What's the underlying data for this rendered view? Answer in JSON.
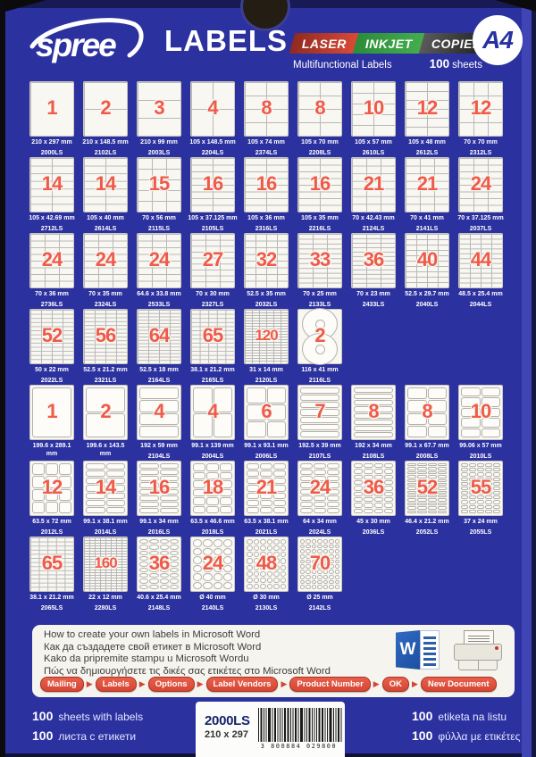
{
  "header": {
    "brand": "spree",
    "title": "LABELS",
    "badges": [
      {
        "label": "LASER",
        "color": "#d94a38"
      },
      {
        "label": "INKJET",
        "color": "#45ad4e"
      },
      {
        "label": "COPIER",
        "color": "#2b2b2b"
      }
    ],
    "a4": "A4",
    "subtitle": "Multifunctional Labels",
    "sheets": {
      "bold": "100",
      "word": "sheets"
    }
  },
  "grid": {
    "rows": [
      {
        "items": [
          {
            "n": "1",
            "size": "210 x 297 mm",
            "code": "2000LS",
            "p": "grid",
            "c": 1,
            "r": 1
          },
          {
            "n": "2",
            "size": "210 x 148.5 mm",
            "code": "2102LS",
            "p": "grid",
            "c": 1,
            "r": 2
          },
          {
            "n": "3",
            "size": "210 x 99 mm",
            "code": "2003LS",
            "p": "grid",
            "c": 1,
            "r": 3
          },
          {
            "n": "4",
            "size": "105 x 148.5 mm",
            "code": "2204LS",
            "p": "grid",
            "c": 2,
            "r": 2
          },
          {
            "n": "8",
            "size": "105 x 74 mm",
            "code": "2374LS",
            "p": "grid",
            "c": 2,
            "r": 4
          },
          {
            "n": "8",
            "size": "105 x 70 mm",
            "code": "2208LS",
            "p": "grid",
            "c": 2,
            "r": 4
          },
          {
            "n": "10",
            "size": "105 x 57 mm",
            "code": "2610LS",
            "p": "grid",
            "c": 2,
            "r": 5
          },
          {
            "n": "12",
            "size": "105 x 48 mm",
            "code": "2612LS",
            "p": "grid",
            "c": 2,
            "r": 6
          },
          {
            "n": "12",
            "size": "70 x 70 mm",
            "code": "2312LS",
            "p": "grid",
            "c": 3,
            "r": 4
          }
        ]
      },
      {
        "items": [
          {
            "n": "14",
            "size": "105 x 42.69 mm",
            "code": "2712LS",
            "p": "grid",
            "c": 2,
            "r": 7
          },
          {
            "n": "14",
            "size": "105 x 40 mm",
            "code": "2614LS",
            "p": "grid",
            "c": 2,
            "r": 7
          },
          {
            "n": "15",
            "size": "70 x 56 mm",
            "code": "2115LS",
            "p": "grid",
            "c": 3,
            "r": 5
          },
          {
            "n": "16",
            "size": "105 x 37.125 mm",
            "code": "2105LS",
            "p": "grid",
            "c": 2,
            "r": 8
          },
          {
            "n": "16",
            "size": "105 x 36 mm",
            "code": "2316LS",
            "p": "grid",
            "c": 2,
            "r": 8
          },
          {
            "n": "16",
            "size": "105 x 35 mm",
            "code": "2216LS",
            "p": "grid",
            "c": 2,
            "r": 8
          },
          {
            "n": "21",
            "size": "70 x 42.43 mm",
            "code": "2124LS",
            "p": "grid",
            "c": 3,
            "r": 7
          },
          {
            "n": "21",
            "size": "70 x 41 mm",
            "code": "2141LS",
            "p": "grid",
            "c": 3,
            "r": 7
          },
          {
            "n": "24",
            "size": "70 x 37.125 mm",
            "code": "2037LS",
            "p": "grid",
            "c": 3,
            "r": 8
          }
        ]
      },
      {
        "items": [
          {
            "n": "24",
            "size": "70 x 36 mm",
            "code": "2736LS",
            "p": "grid",
            "c": 3,
            "r": 8
          },
          {
            "n": "24",
            "size": "70 x 35 mm",
            "code": "2324LS",
            "p": "grid",
            "c": 3,
            "r": 8
          },
          {
            "n": "24",
            "size": "64.6 x 33.8 mm",
            "code": "2533LS",
            "p": "grid",
            "c": 3,
            "r": 8
          },
          {
            "n": "27",
            "size": "70 x 30 mm",
            "code": "2327LS",
            "p": "grid",
            "c": 3,
            "r": 9
          },
          {
            "n": "32",
            "size": "52.5 x 35 mm",
            "code": "2032LS",
            "p": "grid",
            "c": 4,
            "r": 8
          },
          {
            "n": "33",
            "size": "70 x 25 mm",
            "code": "2133LS",
            "p": "grid",
            "c": 3,
            "r": 11
          },
          {
            "n": "36",
            "size": "70 x 23 mm",
            "code": "2433LS",
            "p": "grid",
            "c": 3,
            "r": 12
          },
          {
            "n": "40",
            "size": "52.5 x 29.7 mm",
            "code": "2040LS",
            "p": "grid",
            "c": 4,
            "r": 10
          },
          {
            "n": "44",
            "size": "48.5 x 25.4 mm",
            "code": "2044LS",
            "p": "grid",
            "c": 4,
            "r": 11
          }
        ]
      },
      {
        "items": [
          {
            "n": "52",
            "size": "50 x 22 mm",
            "code": "2022LS",
            "p": "grid",
            "c": 4,
            "r": 13
          },
          {
            "n": "56",
            "size": "52.5 x 21.2 mm",
            "code": "2321LS",
            "p": "grid",
            "c": 4,
            "r": 14
          },
          {
            "n": "64",
            "size": "52.5 x 18 mm",
            "code": "2164LS",
            "p": "grid",
            "c": 4,
            "r": 16
          },
          {
            "n": "65",
            "size": "38.1 x 21.2 mm",
            "code": "2165LS",
            "p": "grid",
            "c": 5,
            "r": 13
          },
          {
            "n": "120",
            "size": "31 x 14 mm",
            "code": "2120LS",
            "p": "grid",
            "c": 6,
            "r": 20
          },
          {
            "n": "2",
            "size": "116 x 41 mm",
            "code": "2116LS",
            "p": "cd",
            "c": 1,
            "r": 2
          }
        ]
      },
      {
        "items": [
          {
            "n": "1",
            "size": "199.6 x 289.1 mm",
            "code": "2001LS",
            "p": "rounded",
            "c": 1,
            "r": 1
          },
          {
            "n": "2",
            "size": "199.6 x 143.5 mm",
            "code": "2002LS",
            "p": "rounded",
            "c": 1,
            "r": 2
          },
          {
            "n": "4",
            "size": "192 x 59 mm",
            "code": "2104LS",
            "p": "rounded",
            "c": 1,
            "r": 4
          },
          {
            "n": "4",
            "size": "99.1 x 139 mm",
            "code": "2004LS",
            "p": "rounded",
            "c": 2,
            "r": 2
          },
          {
            "n": "6",
            "size": "99.1 x 93.1 mm",
            "code": "2006LS",
            "p": "rounded",
            "c": 2,
            "r": 3
          },
          {
            "n": "7",
            "size": "192.5 x 39 mm",
            "code": "2107LS",
            "p": "rounded",
            "c": 1,
            "r": 7
          },
          {
            "n": "8",
            "size": "192 x 34 mm",
            "code": "2108LS",
            "p": "rounded",
            "c": 1,
            "r": 8
          },
          {
            "n": "8",
            "size": "99.1 x 67.7 mm",
            "code": "2008LS",
            "p": "rounded",
            "c": 2,
            "r": 4
          },
          {
            "n": "10",
            "size": "99.06 x 57 mm",
            "code": "2010LS",
            "p": "rounded",
            "c": 2,
            "r": 5
          }
        ]
      },
      {
        "items": [
          {
            "n": "12",
            "size": "63.5 x 72 mm",
            "code": "2012LS",
            "p": "rounded",
            "c": 3,
            "r": 4
          },
          {
            "n": "14",
            "size": "99.1 x 38.1 mm",
            "code": "2014LS",
            "p": "rounded",
            "c": 2,
            "r": 7
          },
          {
            "n": "16",
            "size": "99.1 x 34 mm",
            "code": "2016LS",
            "p": "rounded",
            "c": 2,
            "r": 8
          },
          {
            "n": "18",
            "size": "63.5 x 46.6 mm",
            "code": "2018LS",
            "p": "rounded",
            "c": 3,
            "r": 6
          },
          {
            "n": "21",
            "size": "63.5 x 38.1 mm",
            "code": "2021LS",
            "p": "rounded",
            "c": 3,
            "r": 7
          },
          {
            "n": "24",
            "size": "64 x 34 mm",
            "code": "2024LS",
            "p": "rounded",
            "c": 3,
            "r": 8
          },
          {
            "n": "36",
            "size": "45 x 30 mm",
            "code": "2036LS",
            "p": "rounded",
            "c": 4,
            "r": 9
          },
          {
            "n": "52",
            "size": "46.4 x 21.2 mm",
            "code": "2052LS",
            "p": "rounded",
            "c": 4,
            "r": 13
          },
          {
            "n": "55",
            "size": "37 x 24 mm",
            "code": "2055LS",
            "p": "rounded",
            "c": 5,
            "r": 11
          }
        ]
      },
      {
        "items": [
          {
            "n": "65",
            "size": "38.1 x 21.2 mm",
            "code": "2065LS",
            "p": "grid",
            "c": 5,
            "r": 13
          },
          {
            "n": "160",
            "size": "22 x 12 mm",
            "code": "2280LS",
            "p": "grid",
            "c": 8,
            "r": 20
          },
          {
            "n": "36",
            "size": "40.6 x 25.4 mm",
            "code": "2148LS",
            "p": "ovals",
            "c": 4,
            "r": 9
          },
          {
            "n": "24",
            "size": "Ø 40 mm",
            "code": "2140LS",
            "p": "circles",
            "c": 4,
            "r": 6
          },
          {
            "n": "48",
            "size": "Ø 30 mm",
            "code": "2130LS",
            "p": "circles",
            "c": 6,
            "r": 8
          },
          {
            "n": "70",
            "size": "Ø 25 mm",
            "code": "2142LS",
            "p": "circles",
            "c": 7,
            "r": 10
          }
        ]
      }
    ]
  },
  "howto": {
    "lines": [
      "How to create your own labels in Microsoft Word",
      "Как да създадете свой етикет в Microsoft Word",
      "Kako da pripremite stampu u Microsoft Wordu",
      "Πώς να δημιουργήσετε τις δικές σας ετικέτες στο Microsoft Word"
    ],
    "word_letter": "W",
    "steps": [
      "Mailing",
      "Labels",
      "Options",
      "Label Vendors",
      "Product Number",
      "OK",
      "New Document"
    ]
  },
  "footer": {
    "left": [
      {
        "num": "100",
        "text": "sheets with labels"
      },
      {
        "num": "100",
        "text": "листа с етикети"
      }
    ],
    "right": [
      {
        "num": "100",
        "text": "etiketa na listu"
      },
      {
        "num": "100",
        "text": "φύλλα με ετικέτες"
      }
    ],
    "product_code": "2000LS",
    "product_size": "210 x 297",
    "barcode_digits": "3 800884 029800"
  },
  "colors": {
    "package_blue": "#2c31a0",
    "count_red": "#ef5a49",
    "card_white": "#f8f7f2",
    "laser_red": "#d94a38",
    "inkjet_green": "#45ad4e",
    "copier_black": "#2b2b2b",
    "button_red": "#d64533"
  }
}
